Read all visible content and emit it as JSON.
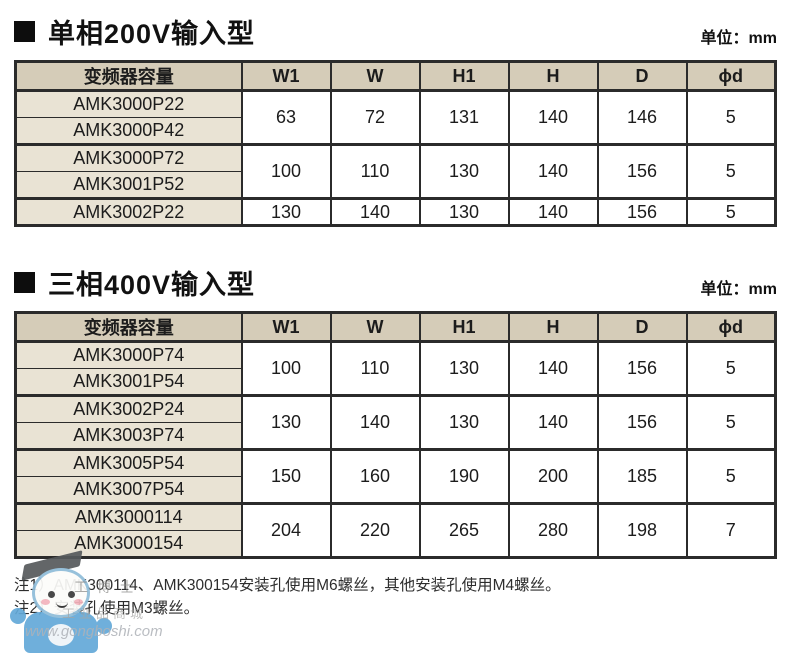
{
  "tables": [
    {
      "title": "单相200V输入型",
      "unit": "单位：mm",
      "columns": [
        "变频器容量",
        "W1",
        "W",
        "H1",
        "H",
        "D",
        "ϕd"
      ],
      "groups": [
        {
          "models": [
            "AMK3000P22",
            "AMK3000P42"
          ],
          "values": [
            "63",
            "72",
            "131",
            "140",
            "146",
            "5"
          ]
        },
        {
          "models": [
            "AMK3000P72",
            "AMK3001P52"
          ],
          "values": [
            "100",
            "110",
            "130",
            "140",
            "156",
            "5"
          ]
        },
        {
          "models": [
            "AMK3002P22"
          ],
          "values": [
            "130",
            "140",
            "130",
            "140",
            "156",
            "5"
          ]
        }
      ]
    },
    {
      "title": "三相400V输入型",
      "unit": "单位：mm",
      "columns": [
        "变频器容量",
        "W1",
        "W",
        "H1",
        "H",
        "D",
        "ϕd"
      ],
      "groups": [
        {
          "models": [
            "AMK3000P74",
            "AMK3001P54"
          ],
          "values": [
            "100",
            "110",
            "130",
            "140",
            "156",
            "5"
          ]
        },
        {
          "models": [
            "AMK3002P24",
            "AMK3003P74"
          ],
          "values": [
            "130",
            "140",
            "130",
            "140",
            "156",
            "5"
          ]
        },
        {
          "models": [
            "AMK3005P54",
            "AMK3007P54"
          ],
          "values": [
            "150",
            "160",
            "190",
            "200",
            "185",
            "5"
          ]
        },
        {
          "models": [
            "AMK3000114",
            "AMK3000154"
          ],
          "values": [
            "204",
            "220",
            "265",
            "280",
            "198",
            "7"
          ]
        }
      ]
    }
  ],
  "footnotes": [
    "注1）AMK300114、AMK300154安装孔使用M6螺丝，其他安装孔使用M4螺丝。",
    "注2）安装孔使用M3螺丝。"
  ],
  "watermark": {
    "text_1": "工博士",
    "text_2": "工业品商城",
    "text_3": "www.gongboshi.com"
  },
  "colors": {
    "header_bg": "#d5ccb8",
    "model_column_bg": "#e9e3d4",
    "border": "#2b2b2b",
    "mascot_blue": "#63a9d8"
  }
}
